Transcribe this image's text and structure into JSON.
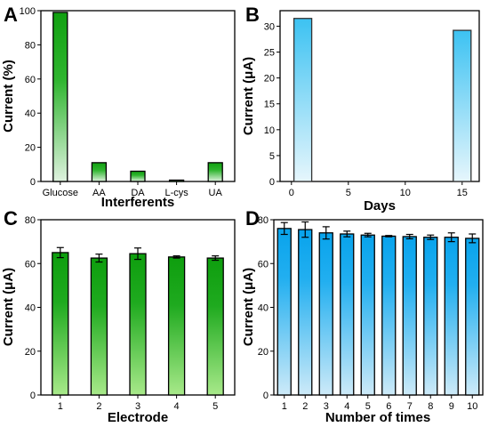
{
  "chart_data": [
    {
      "panel": "A",
      "type": "bar",
      "categories": [
        "Glucose",
        "AA",
        "DA",
        "L-cys",
        "UA"
      ],
      "values": [
        99,
        11,
        6,
        0.8,
        11
      ],
      "xlabel": "Interferents",
      "ylabel": "Current (%)",
      "ylim": [
        0,
        100
      ],
      "yticks": [
        0,
        20,
        40,
        60,
        80,
        100
      ],
      "grid": false,
      "colors": {
        "top": "#11a011",
        "bottom": "#dff2df",
        "stroke": "#000000"
      }
    },
    {
      "panel": "B",
      "type": "bar",
      "x": [
        1,
        15
      ],
      "values": [
        31.5,
        29.2
      ],
      "xlabel": "Days",
      "ylabel": "Current (μA)",
      "xlim": [
        -1,
        16.5
      ],
      "ylim": [
        0,
        33
      ],
      "xticks": [
        0,
        5,
        10,
        15
      ],
      "yticks": [
        0,
        5,
        10,
        15,
        20,
        25,
        30
      ],
      "grid": false,
      "colors": {
        "top": "#3cc2f2",
        "bottom": "#e6f6fc",
        "stroke": "#333333"
      }
    },
    {
      "panel": "C",
      "type": "bar",
      "categories": [
        "1",
        "2",
        "3",
        "4",
        "5"
      ],
      "values": [
        65,
        62.5,
        64.5,
        63,
        62.5
      ],
      "errors": [
        2.3,
        1.8,
        2.6,
        0.5,
        1.0
      ],
      "xlabel": "Electrode",
      "ylabel": "Current (μA)",
      "ylim": [
        0,
        80
      ],
      "yticks": [
        0,
        20,
        40,
        60,
        80
      ],
      "grid": false,
      "colors": {
        "top": "#0e9e0e",
        "bottom": "#a8e98a",
        "stroke": "#000000"
      }
    },
    {
      "panel": "D",
      "type": "bar",
      "categories": [
        "1",
        "2",
        "3",
        "4",
        "5",
        "6",
        "7",
        "8",
        "9",
        "10"
      ],
      "values": [
        76,
        75.5,
        74,
        73.5,
        73,
        72.5,
        72.3,
        72,
        72,
        71.5
      ],
      "errors": [
        2.7,
        3.5,
        2.8,
        1.3,
        0.8,
        0.3,
        1.0,
        1.0,
        2.0,
        2.0
      ],
      "xlabel": "Number of times",
      "ylabel": "Current (μA)",
      "ylim": [
        0,
        80
      ],
      "yticks": [
        0,
        20,
        40,
        60,
        80
      ],
      "grid": false,
      "colors": {
        "top": "#08a3ec",
        "bottom": "#cdeaf8",
        "stroke": "#000000"
      }
    }
  ]
}
